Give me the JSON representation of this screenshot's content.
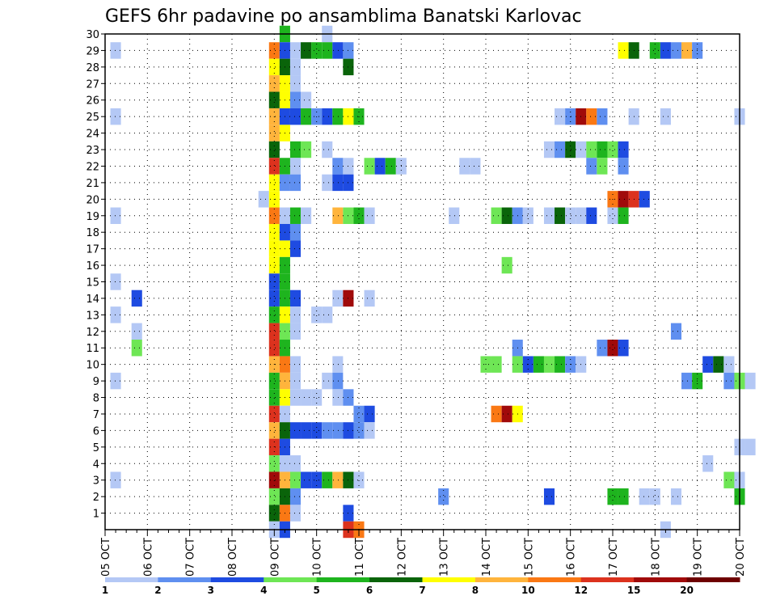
{
  "chart_data": {
    "type": "heatmap",
    "title": "GEFS 6hr padavine po ansamblima Banatski Karlovac",
    "xlabel": "",
    "ylabel": "",
    "x_ticks": [
      "05 OCT",
      "06 OCT",
      "07 OCT",
      "08 OCT",
      "09 OCT",
      "10 OCT",
      "11 OCT",
      "12 OCT",
      "13 OCT",
      "14 OCT",
      "15 OCT",
      "16 OCT",
      "17 OCT",
      "18 OCT",
      "19 OCT",
      "20 OCT"
    ],
    "xlim": [
      0,
      15
    ],
    "steps_per_day": 4,
    "y_ticks": [
      1,
      2,
      3,
      4,
      5,
      6,
      7,
      8,
      9,
      10,
      11,
      12,
      13,
      14,
      15,
      16,
      17,
      18,
      19,
      20,
      21,
      22,
      23,
      24,
      25,
      26,
      27,
      28,
      29,
      30
    ],
    "ylim": [
      0,
      30
    ],
    "grid": true,
    "color_scale": {
      "labels": [
        "1",
        "2",
        "3",
        "4",
        "5",
        "6",
        "7",
        "8",
        "10",
        "12",
        "15",
        "20"
      ],
      "colors": [
        "#b4c8f5",
        "#5f8ff0",
        "#1e4be1",
        "#6ee655",
        "#1eb41e",
        "#0a640a",
        "#ffff00",
        "#ffb43c",
        "#fa7814",
        "#dc321e",
        "#a00a0a",
        "#6e0000"
      ]
    },
    "cells": [
      {
        "member": 30,
        "values": [
          [
            4.25,
            5
          ],
          [
            5.25,
            1
          ]
        ]
      },
      {
        "member": 29,
        "values": [
          [
            0.25,
            1
          ],
          [
            4,
            9
          ],
          [
            4.25,
            3
          ],
          [
            4.5,
            1
          ],
          [
            4.75,
            6
          ],
          [
            5,
            5
          ],
          [
            5.25,
            5
          ],
          [
            5.5,
            3
          ],
          [
            5.75,
            2
          ],
          [
            12.25,
            7
          ],
          [
            12.5,
            6
          ],
          [
            13,
            5
          ],
          [
            13.25,
            3
          ],
          [
            13.5,
            2
          ],
          [
            13.75,
            8
          ],
          [
            14,
            2
          ]
        ]
      },
      {
        "member": 28,
        "values": [
          [
            4,
            7
          ],
          [
            4.25,
            6
          ],
          [
            4.5,
            1
          ],
          [
            5.75,
            6
          ]
        ]
      },
      {
        "member": 27,
        "values": [
          [
            4,
            8
          ],
          [
            4.25,
            7
          ],
          [
            4.5,
            1
          ]
        ]
      },
      {
        "member": 26,
        "values": [
          [
            4,
            6
          ],
          [
            4.25,
            7
          ],
          [
            4.5,
            2
          ],
          [
            4.75,
            1
          ]
        ]
      },
      {
        "member": 25,
        "values": [
          [
            0.25,
            1
          ],
          [
            4,
            8
          ],
          [
            4.25,
            3
          ],
          [
            4.5,
            3
          ],
          [
            4.75,
            5
          ],
          [
            5,
            2
          ],
          [
            5.25,
            3
          ],
          [
            5.5,
            5
          ],
          [
            5.75,
            7
          ],
          [
            6,
            5
          ],
          [
            10.75,
            1
          ],
          [
            11,
            2
          ],
          [
            11.25,
            11
          ],
          [
            11.5,
            9
          ],
          [
            11.75,
            2
          ],
          [
            12.5,
            1
          ],
          [
            13.25,
            1
          ],
          [
            15,
            1
          ]
        ]
      },
      {
        "member": 24,
        "values": [
          [
            4,
            8
          ],
          [
            4.25,
            7
          ]
        ]
      },
      {
        "member": 23,
        "values": [
          [
            4,
            6
          ],
          [
            4.5,
            5
          ],
          [
            4.75,
            4
          ],
          [
            5.25,
            1
          ],
          [
            10.5,
            1
          ],
          [
            10.75,
            2
          ],
          [
            11,
            6
          ],
          [
            11.25,
            1
          ],
          [
            11.5,
            4
          ],
          [
            11.75,
            5
          ],
          [
            12,
            4
          ],
          [
            12.25,
            3
          ]
        ]
      },
      {
        "member": 22,
        "values": [
          [
            4,
            10
          ],
          [
            4.25,
            5
          ],
          [
            4.5,
            1
          ],
          [
            5.5,
            2
          ],
          [
            5.75,
            1
          ],
          [
            6.25,
            4
          ],
          [
            6.5,
            3
          ],
          [
            6.75,
            5
          ],
          [
            7,
            1
          ],
          [
            8.5,
            1
          ],
          [
            8.75,
            1
          ],
          [
            11.5,
            2
          ],
          [
            11.75,
            4
          ],
          [
            12.25,
            2
          ]
        ]
      },
      {
        "member": 21,
        "values": [
          [
            4,
            7
          ],
          [
            4.25,
            2
          ],
          [
            4.5,
            2
          ],
          [
            5.25,
            1
          ],
          [
            5.5,
            3
          ],
          [
            5.75,
            3
          ]
        ]
      },
      {
        "member": 20,
        "values": [
          [
            3.75,
            1
          ],
          [
            4,
            7
          ],
          [
            12,
            9
          ],
          [
            12.25,
            11
          ],
          [
            12.5,
            10
          ],
          [
            12.75,
            3
          ]
        ]
      },
      {
        "member": 19,
        "values": [
          [
            0.25,
            1
          ],
          [
            4,
            9
          ],
          [
            4.25,
            1
          ],
          [
            4.5,
            5
          ],
          [
            4.75,
            1
          ],
          [
            5.5,
            8
          ],
          [
            5.75,
            4
          ],
          [
            6,
            5
          ],
          [
            6.25,
            1
          ],
          [
            8.25,
            1
          ],
          [
            9.25,
            4
          ],
          [
            9.5,
            6
          ],
          [
            9.75,
            2
          ],
          [
            10,
            1
          ],
          [
            10.5,
            1
          ],
          [
            10.75,
            6
          ],
          [
            11,
            1
          ],
          [
            11.25,
            1
          ],
          [
            11.5,
            3
          ],
          [
            12,
            1
          ],
          [
            12.25,
            5
          ]
        ]
      },
      {
        "member": 18,
        "values": [
          [
            4,
            7
          ],
          [
            4.25,
            3
          ],
          [
            4.5,
            2
          ]
        ]
      },
      {
        "member": 17,
        "values": [
          [
            4,
            7
          ],
          [
            4.25,
            7
          ],
          [
            4.5,
            3
          ]
        ]
      },
      {
        "member": 16,
        "values": [
          [
            4,
            7
          ],
          [
            4.25,
            5
          ],
          [
            9.5,
            4
          ]
        ]
      },
      {
        "member": 15,
        "values": [
          [
            0.25,
            1
          ],
          [
            4,
            3
          ],
          [
            4.25,
            5
          ]
        ]
      },
      {
        "member": 14,
        "values": [
          [
            0.75,
            3
          ],
          [
            4,
            3
          ],
          [
            4.25,
            5
          ],
          [
            4.5,
            3
          ],
          [
            5.5,
            1
          ],
          [
            5.75,
            11
          ],
          [
            6.25,
            1
          ]
        ]
      },
      {
        "member": 13,
        "values": [
          [
            0.25,
            1
          ],
          [
            4,
            5
          ],
          [
            4.25,
            7
          ],
          [
            4.5,
            1
          ],
          [
            5,
            1
          ],
          [
            5.25,
            1
          ]
        ]
      },
      {
        "member": 12,
        "values": [
          [
            0.75,
            1
          ],
          [
            4,
            10
          ],
          [
            4.25,
            4
          ],
          [
            4.5,
            1
          ],
          [
            13.5,
            2
          ]
        ]
      },
      {
        "member": 11,
        "values": [
          [
            0.75,
            4
          ],
          [
            4,
            10
          ],
          [
            4.25,
            5
          ],
          [
            9.75,
            2
          ],
          [
            11.75,
            2
          ],
          [
            12,
            11
          ],
          [
            12.25,
            3
          ]
        ]
      },
      {
        "member": 10,
        "values": [
          [
            4,
            8
          ],
          [
            4.25,
            9
          ],
          [
            4.5,
            1
          ],
          [
            5.5,
            1
          ],
          [
            9,
            4
          ],
          [
            9.25,
            4
          ],
          [
            9.75,
            4
          ],
          [
            10,
            3
          ],
          [
            10.25,
            5
          ],
          [
            10.5,
            4
          ],
          [
            10.75,
            5
          ],
          [
            11,
            2
          ],
          [
            11.25,
            1
          ],
          [
            14.25,
            3
          ],
          [
            14.5,
            6
          ],
          [
            14.75,
            1
          ]
        ]
      },
      {
        "member": 9,
        "values": [
          [
            0.25,
            1
          ],
          [
            4,
            5
          ],
          [
            4.25,
            8
          ],
          [
            4.5,
            1
          ],
          [
            5.25,
            1
          ],
          [
            5.5,
            2
          ],
          [
            13.75,
            2
          ],
          [
            14,
            5
          ],
          [
            14.75,
            2
          ],
          [
            15,
            4
          ],
          [
            15.25,
            1
          ]
        ]
      },
      {
        "member": 8,
        "values": [
          [
            4,
            5
          ],
          [
            4.25,
            7
          ],
          [
            4.5,
            1
          ],
          [
            4.75,
            1
          ],
          [
            5,
            1
          ],
          [
            5.5,
            1
          ],
          [
            5.75,
            2
          ]
        ]
      },
      {
        "member": 7,
        "values": [
          [
            4,
            10
          ],
          [
            4.25,
            1
          ],
          [
            6,
            2
          ],
          [
            6.25,
            3
          ],
          [
            9.25,
            9
          ],
          [
            9.5,
            11
          ],
          [
            9.75,
            7
          ]
        ]
      },
      {
        "member": 6,
        "values": [
          [
            4,
            8
          ],
          [
            4.25,
            6
          ],
          [
            4.5,
            3
          ],
          [
            4.75,
            3
          ],
          [
            5,
            3
          ],
          [
            5.25,
            2
          ],
          [
            5.5,
            2
          ],
          [
            5.75,
            3
          ],
          [
            6,
            2
          ],
          [
            6.25,
            1
          ]
        ]
      },
      {
        "member": 5,
        "values": [
          [
            4,
            10
          ],
          [
            4.25,
            3
          ],
          [
            15,
            1
          ],
          [
            15.25,
            1
          ]
        ]
      },
      {
        "member": 4,
        "values": [
          [
            4,
            4
          ],
          [
            4.25,
            1
          ],
          [
            4.5,
            1
          ],
          [
            14.25,
            1
          ]
        ]
      },
      {
        "member": 3,
        "values": [
          [
            0.25,
            1
          ],
          [
            4,
            11
          ],
          [
            4.25,
            8
          ],
          [
            4.5,
            4
          ],
          [
            4.75,
            3
          ],
          [
            5,
            3
          ],
          [
            5.25,
            5
          ],
          [
            5.5,
            8
          ],
          [
            5.75,
            6
          ],
          [
            6,
            1
          ],
          [
            14.75,
            4
          ],
          [
            15,
            1
          ]
        ]
      },
      {
        "member": 2,
        "values": [
          [
            4,
            4
          ],
          [
            4.25,
            6
          ],
          [
            4.5,
            2
          ],
          [
            8,
            2
          ],
          [
            10.5,
            3
          ],
          [
            12,
            5
          ],
          [
            12.25,
            5
          ],
          [
            12.75,
            1
          ],
          [
            13,
            1
          ],
          [
            13.5,
            1
          ],
          [
            15,
            5
          ]
        ]
      },
      {
        "member": 1,
        "values": [
          [
            4,
            6
          ],
          [
            4.25,
            9
          ],
          [
            4.5,
            1
          ],
          [
            5.75,
            3
          ]
        ]
      },
      {
        "member": 0,
        "values": [
          [
            4,
            1
          ],
          [
            4.25,
            3
          ],
          [
            5.75,
            10
          ],
          [
            6,
            9
          ],
          [
            13.25,
            1
          ]
        ]
      }
    ]
  }
}
